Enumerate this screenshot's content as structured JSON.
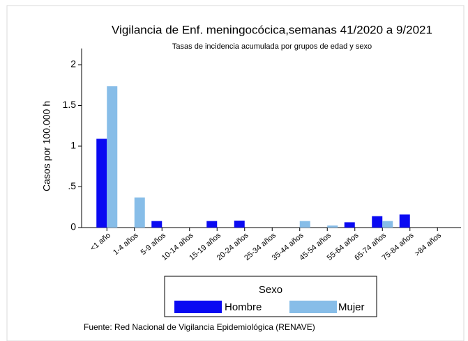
{
  "chart_data": {
    "type": "bar",
    "title": "Vigilancia de Enf. meningocócica,semanas 41/2020 a 9/2021",
    "subtitle": "Tasas de incidencia acumulada por grupos de edad y sexo",
    "y_label": "Casos por 100.000 h",
    "legend_title": "Sexo",
    "source": "Fuente: Red Nacional de Vigilancia Epidemiológica (RENAVE)",
    "categories": [
      "<1 año",
      "1-4 años",
      "5-9 años",
      "10-14 años",
      "15-19 años",
      "20-24 años",
      "25-34 años",
      "35-44 años",
      "45-54 años",
      "55-64 años",
      "65-74 años",
      "75-84 años",
      ">84 años"
    ],
    "series": [
      {
        "name": "Hombre",
        "color": "#0a0af2",
        "values": [
          1.09,
          0,
          0.08,
          0,
          0.08,
          0.085,
          0,
          0,
          0,
          0.065,
          0.14,
          0.16,
          0
        ]
      },
      {
        "name": "Mujer",
        "color": "#87bde8",
        "values": [
          1.735,
          0.37,
          0,
          0,
          0,
          0,
          0,
          0.08,
          0.025,
          0,
          0.08,
          0,
          0
        ]
      }
    ],
    "ylim": [
      0,
      2.2
    ],
    "yticks": [
      0,
      {
        "value": 0.5,
        "label": ".5"
      },
      1,
      1.5,
      2
    ],
    "legend": "bottom"
  }
}
